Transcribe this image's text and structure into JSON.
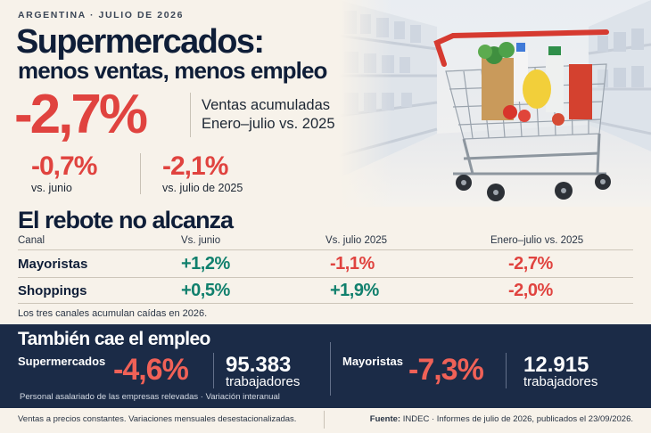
{
  "header": {
    "kicker": "ARGENTINA · JULIO DE 2026",
    "title_line1": "Supermercados:",
    "title_line2": "menos ventas, menos empleo"
  },
  "headline": {
    "value": "-2,7%",
    "caption_line1": "Ventas acumuladas",
    "caption_line2": "Enero–julio vs. 2025"
  },
  "sub_stats": [
    {
      "value": "-0,7%",
      "caption": "vs. junio"
    },
    {
      "value": "-2,1%",
      "caption": "vs. julio de 2025"
    }
  ],
  "table": {
    "title": "El rebote no alcanza",
    "columns": [
      "Canal",
      "Vs. junio",
      "Vs. julio 2025",
      "Enero–julio vs. 2025"
    ],
    "rows": [
      {
        "label": "Mayoristas",
        "values": [
          "+1,2%",
          "-1,1%",
          "-2,7%"
        ]
      },
      {
        "label": "Shoppings",
        "values": [
          "+0,5%",
          "+1,9%",
          "-2,0%"
        ]
      }
    ],
    "note": "Los tres canales acumulan caídas en 2026."
  },
  "employment": {
    "title": "También cae el empleo",
    "items": [
      {
        "label": "Supermercados",
        "pct": "-4,6%",
        "count": "95.383",
        "unit": "trabajadores"
      },
      {
        "label": "Mayoristas",
        "pct": "-7,3%",
        "count": "12.915",
        "unit": "trabajadores"
      }
    ],
    "footnote": "Personal asalariado de las empresas relevadas · Variación interanual"
  },
  "footer": {
    "left": "Ventas a precios constantes. Variaciones mensuales desestacionalizadas.",
    "source_label": "Fuente:",
    "source_text": "INDEC · Informes de julio de 2026, publicados el 23/09/2026."
  },
  "colors": {
    "negative": "#e0433f",
    "positive": "#11806d",
    "navy": "#1b2b47",
    "background": "#f7f2ea"
  }
}
